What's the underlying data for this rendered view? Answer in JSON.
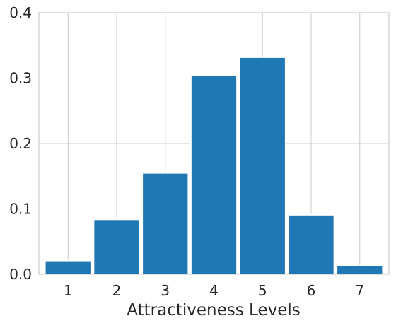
{
  "chart_data": {
    "type": "bar",
    "title": "",
    "xlabel": "Attractiveness Levels",
    "ylabel": "",
    "categories": [
      "1",
      "2",
      "3",
      "4",
      "5",
      "6",
      "7"
    ],
    "values": [
      0.021,
      0.084,
      0.155,
      0.304,
      0.332,
      0.091,
      0.013
    ],
    "ylim": [
      0,
      0.4
    ],
    "yticks": [
      0.0,
      0.1,
      0.2,
      0.3,
      0.4
    ],
    "ytick_labels": [
      "0.0",
      "0.1",
      "0.2",
      "0.3",
      "0.4"
    ],
    "grid": true,
    "legend": "none",
    "bar_color": "#1f77b4",
    "grid_color": "#cccccc",
    "spine_color": "#cccccc",
    "text_color": "#262626"
  }
}
